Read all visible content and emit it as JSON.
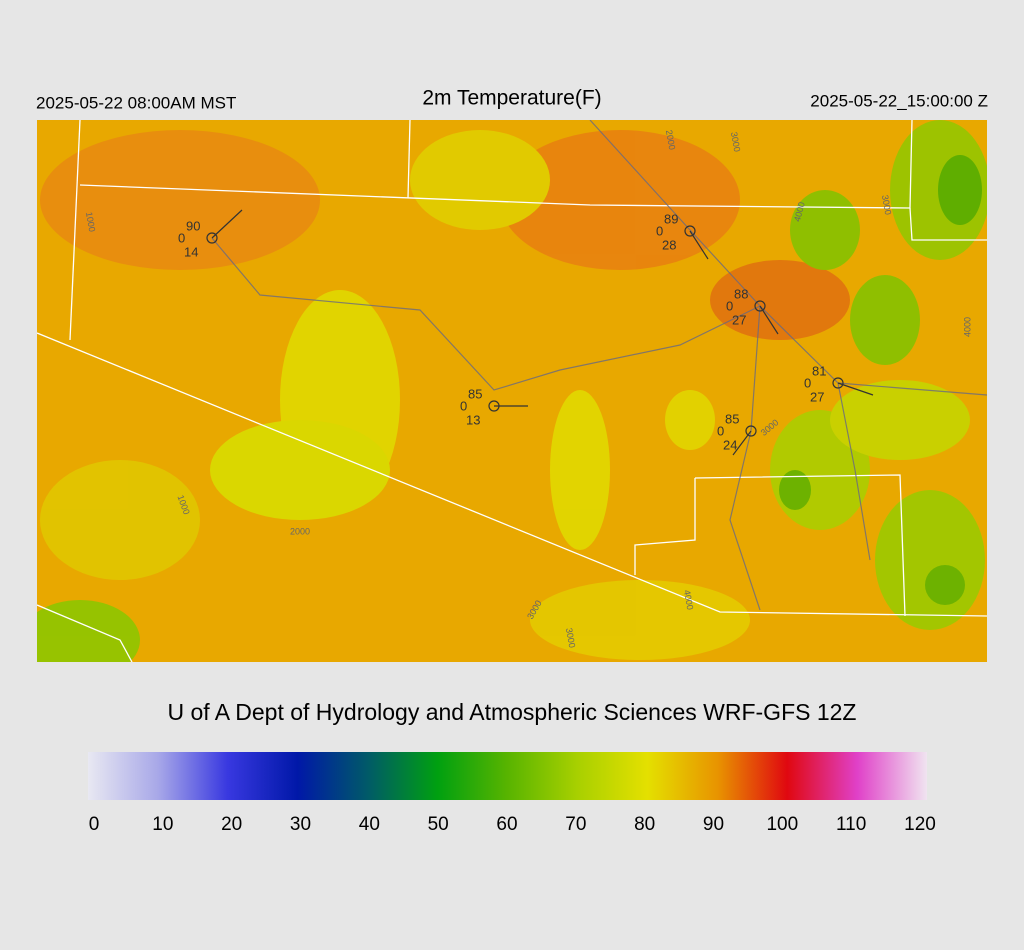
{
  "header": {
    "local_time": "2025-05-22 08:00AM MST",
    "title": "2m Temperature(F)",
    "utc_time": "2025-05-22_15:00:00 Z"
  },
  "stations": [
    {
      "temp": 90,
      "pressure": 0,
      "dewpoint": 14
    },
    {
      "temp": 89,
      "pressure": 0,
      "dewpoint": 28
    },
    {
      "temp": 88,
      "pressure": 0,
      "dewpoint": 27
    },
    {
      "temp": 81,
      "pressure": 0,
      "dewpoint": 27
    },
    {
      "temp": 85,
      "pressure": 0,
      "dewpoint": 13
    },
    {
      "temp": 85,
      "pressure": 0,
      "dewpoint": 24
    }
  ],
  "contour_labels": [
    1000,
    2000,
    3000,
    4000,
    3000,
    4000,
    1000,
    2000,
    3000,
    3000,
    4000,
    3000
  ],
  "credit": "U of A Dept of Hydrology and Atmospheric Sciences WRF-GFS 12Z",
  "colorbar": {
    "range": [
      0,
      120
    ],
    "ticks": [
      0,
      10,
      20,
      30,
      40,
      50,
      60,
      70,
      80,
      90,
      100,
      110,
      120
    ],
    "colors": [
      "#e8e8f2",
      "#a8a8e8",
      "#3838e0",
      "#0018a8",
      "#005a68",
      "#00a010",
      "#58b400",
      "#a8d000",
      "#e4e000",
      "#e89400",
      "#e00810",
      "#e040c8",
      "#f0e4f0"
    ]
  }
}
